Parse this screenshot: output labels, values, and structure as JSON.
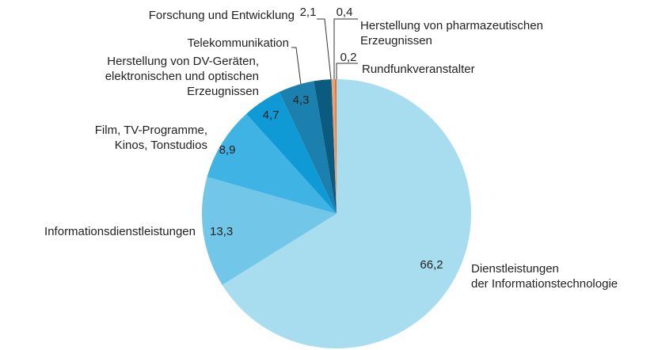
{
  "chart_data": {
    "type": "pie",
    "categories": [
      "Dienstleistungen\nder Informationstechnologie",
      "Informationsdienstleistungen",
      "Film, TV-Programme,\nKinos, Tonstudios",
      "Herstellung von DV-Geräten,\nelektronischen und optischen\nErzeugnissen",
      "Telekommunikation",
      "Forschung und Entwicklung",
      "Herstellung von pharmazeutischen\nErzeugnissen",
      "Rundfunkveranstalter"
    ],
    "values": [
      66.2,
      13.3,
      8.9,
      4.7,
      4.3,
      2.1,
      0.4,
      0.2
    ],
    "value_labels": [
      "66,2",
      "13,3",
      "8,9",
      "4,7",
      "4,3",
      "2,1",
      "0,4",
      "0,2"
    ],
    "colors": [
      "#a8dcef",
      "#72c6e8",
      "#3fb3e3",
      "#0f9ad6",
      "#1b80ae",
      "#0b5a80",
      "#f0a070",
      "#e07438"
    ]
  }
}
